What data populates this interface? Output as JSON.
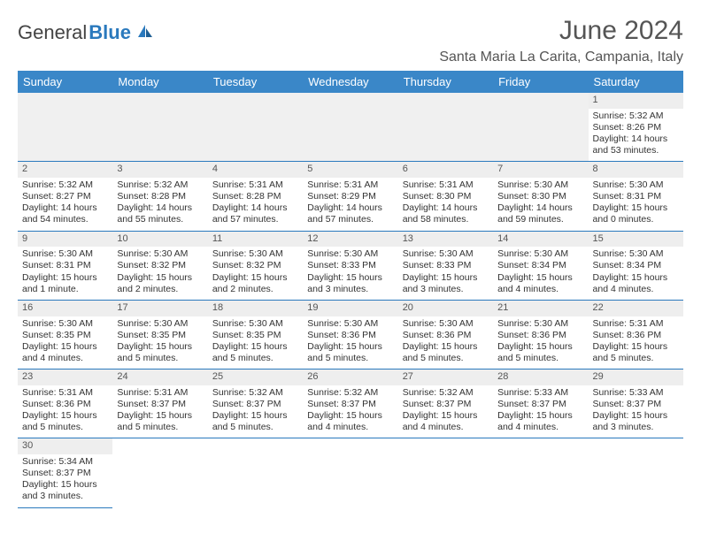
{
  "logo": {
    "text1": "General",
    "text2": "Blue"
  },
  "title": "June 2024",
  "location": "Santa Maria La Carita, Campania, Italy",
  "header_bg": "#3a87c8",
  "border_color": "#2a79bd",
  "stripe_color": "#eeeeee",
  "dayHeaders": [
    "Sunday",
    "Monday",
    "Tuesday",
    "Wednesday",
    "Thursday",
    "Friday",
    "Saturday"
  ],
  "weeks": [
    [
      null,
      null,
      null,
      null,
      null,
      null,
      {
        "n": "1",
        "sr": "Sunrise: 5:32 AM",
        "ss": "Sunset: 8:26 PM",
        "dl": "Daylight: 14 hours and 53 minutes."
      }
    ],
    [
      {
        "n": "2",
        "sr": "Sunrise: 5:32 AM",
        "ss": "Sunset: 8:27 PM",
        "dl": "Daylight: 14 hours and 54 minutes."
      },
      {
        "n": "3",
        "sr": "Sunrise: 5:32 AM",
        "ss": "Sunset: 8:28 PM",
        "dl": "Daylight: 14 hours and 55 minutes."
      },
      {
        "n": "4",
        "sr": "Sunrise: 5:31 AM",
        "ss": "Sunset: 8:28 PM",
        "dl": "Daylight: 14 hours and 57 minutes."
      },
      {
        "n": "5",
        "sr": "Sunrise: 5:31 AM",
        "ss": "Sunset: 8:29 PM",
        "dl": "Daylight: 14 hours and 57 minutes."
      },
      {
        "n": "6",
        "sr": "Sunrise: 5:31 AM",
        "ss": "Sunset: 8:30 PM",
        "dl": "Daylight: 14 hours and 58 minutes."
      },
      {
        "n": "7",
        "sr": "Sunrise: 5:30 AM",
        "ss": "Sunset: 8:30 PM",
        "dl": "Daylight: 14 hours and 59 minutes."
      },
      {
        "n": "8",
        "sr": "Sunrise: 5:30 AM",
        "ss": "Sunset: 8:31 PM",
        "dl": "Daylight: 15 hours and 0 minutes."
      }
    ],
    [
      {
        "n": "9",
        "sr": "Sunrise: 5:30 AM",
        "ss": "Sunset: 8:31 PM",
        "dl": "Daylight: 15 hours and 1 minute."
      },
      {
        "n": "10",
        "sr": "Sunrise: 5:30 AM",
        "ss": "Sunset: 8:32 PM",
        "dl": "Daylight: 15 hours and 2 minutes."
      },
      {
        "n": "11",
        "sr": "Sunrise: 5:30 AM",
        "ss": "Sunset: 8:32 PM",
        "dl": "Daylight: 15 hours and 2 minutes."
      },
      {
        "n": "12",
        "sr": "Sunrise: 5:30 AM",
        "ss": "Sunset: 8:33 PM",
        "dl": "Daylight: 15 hours and 3 minutes."
      },
      {
        "n": "13",
        "sr": "Sunrise: 5:30 AM",
        "ss": "Sunset: 8:33 PM",
        "dl": "Daylight: 15 hours and 3 minutes."
      },
      {
        "n": "14",
        "sr": "Sunrise: 5:30 AM",
        "ss": "Sunset: 8:34 PM",
        "dl": "Daylight: 15 hours and 4 minutes."
      },
      {
        "n": "15",
        "sr": "Sunrise: 5:30 AM",
        "ss": "Sunset: 8:34 PM",
        "dl": "Daylight: 15 hours and 4 minutes."
      }
    ],
    [
      {
        "n": "16",
        "sr": "Sunrise: 5:30 AM",
        "ss": "Sunset: 8:35 PM",
        "dl": "Daylight: 15 hours and 4 minutes."
      },
      {
        "n": "17",
        "sr": "Sunrise: 5:30 AM",
        "ss": "Sunset: 8:35 PM",
        "dl": "Daylight: 15 hours and 5 minutes."
      },
      {
        "n": "18",
        "sr": "Sunrise: 5:30 AM",
        "ss": "Sunset: 8:35 PM",
        "dl": "Daylight: 15 hours and 5 minutes."
      },
      {
        "n": "19",
        "sr": "Sunrise: 5:30 AM",
        "ss": "Sunset: 8:36 PM",
        "dl": "Daylight: 15 hours and 5 minutes."
      },
      {
        "n": "20",
        "sr": "Sunrise: 5:30 AM",
        "ss": "Sunset: 8:36 PM",
        "dl": "Daylight: 15 hours and 5 minutes."
      },
      {
        "n": "21",
        "sr": "Sunrise: 5:30 AM",
        "ss": "Sunset: 8:36 PM",
        "dl": "Daylight: 15 hours and 5 minutes."
      },
      {
        "n": "22",
        "sr": "Sunrise: 5:31 AM",
        "ss": "Sunset: 8:36 PM",
        "dl": "Daylight: 15 hours and 5 minutes."
      }
    ],
    [
      {
        "n": "23",
        "sr": "Sunrise: 5:31 AM",
        "ss": "Sunset: 8:36 PM",
        "dl": "Daylight: 15 hours and 5 minutes."
      },
      {
        "n": "24",
        "sr": "Sunrise: 5:31 AM",
        "ss": "Sunset: 8:37 PM",
        "dl": "Daylight: 15 hours and 5 minutes."
      },
      {
        "n": "25",
        "sr": "Sunrise: 5:32 AM",
        "ss": "Sunset: 8:37 PM",
        "dl": "Daylight: 15 hours and 5 minutes."
      },
      {
        "n": "26",
        "sr": "Sunrise: 5:32 AM",
        "ss": "Sunset: 8:37 PM",
        "dl": "Daylight: 15 hours and 4 minutes."
      },
      {
        "n": "27",
        "sr": "Sunrise: 5:32 AM",
        "ss": "Sunset: 8:37 PM",
        "dl": "Daylight: 15 hours and 4 minutes."
      },
      {
        "n": "28",
        "sr": "Sunrise: 5:33 AM",
        "ss": "Sunset: 8:37 PM",
        "dl": "Daylight: 15 hours and 4 minutes."
      },
      {
        "n": "29",
        "sr": "Sunrise: 5:33 AM",
        "ss": "Sunset: 8:37 PM",
        "dl": "Daylight: 15 hours and 3 minutes."
      }
    ],
    [
      {
        "n": "30",
        "sr": "Sunrise: 5:34 AM",
        "ss": "Sunset: 8:37 PM",
        "dl": "Daylight: 15 hours and 3 minutes."
      },
      null,
      null,
      null,
      null,
      null,
      null
    ]
  ]
}
